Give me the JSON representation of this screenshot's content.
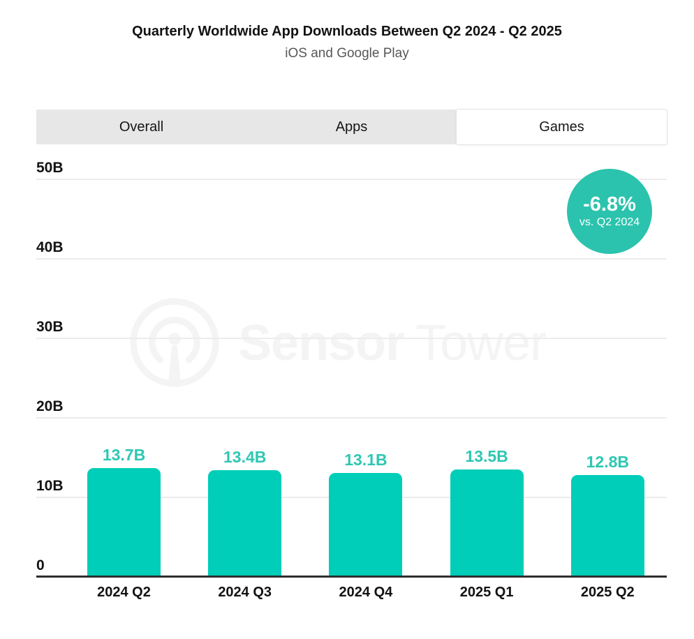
{
  "header": {
    "title": "Quarterly Worldwide App Downloads Between Q2 2024 - Q2 2025",
    "subtitle": "iOS and Google Play"
  },
  "tabs": [
    {
      "label": "Overall",
      "active": false
    },
    {
      "label": "Apps",
      "active": false
    },
    {
      "label": "Games",
      "active": true
    }
  ],
  "badge": {
    "value": "-6.8%",
    "caption": "vs. Q2 2024"
  },
  "watermark": {
    "brand_bold": "Sensor",
    "brand_light": "Tower"
  },
  "colors": {
    "bar": "#00ceb8",
    "value_label": "#2fc7b3",
    "badge": "#2bc3ad",
    "gridline": "#ececec",
    "axis": "#2e2e2e",
    "tab_bg": "#e7e7e7",
    "active_tab_bg": "#ffffff"
  },
  "chart_data": {
    "type": "bar",
    "title": "Quarterly Worldwide App Downloads Between Q2 2024 - Q2 2025",
    "subtitle": "iOS and Google Play",
    "categories": [
      "2024 Q2",
      "2024 Q3",
      "2024 Q4",
      "2025 Q1",
      "2025 Q2"
    ],
    "values": [
      13.7,
      13.4,
      13.1,
      13.5,
      12.8
    ],
    "value_labels": [
      "13.7B",
      "13.4B",
      "13.1B",
      "13.5B",
      "12.8B"
    ],
    "unit": "billions of downloads",
    "xlabel": "",
    "ylabel": "",
    "ylim": [
      0,
      50
    ],
    "yticks": [
      {
        "value": 0,
        "label": "0"
      },
      {
        "value": 10,
        "label": "10B"
      },
      {
        "value": 20,
        "label": "20B"
      },
      {
        "value": 30,
        "label": "30B"
      },
      {
        "value": 40,
        "label": "40B"
      },
      {
        "value": 50,
        "label": "50B"
      }
    ],
    "grid": true,
    "legend": false,
    "annotation": {
      "text": "-6.8%",
      "detail": "vs. Q2 2024"
    }
  }
}
